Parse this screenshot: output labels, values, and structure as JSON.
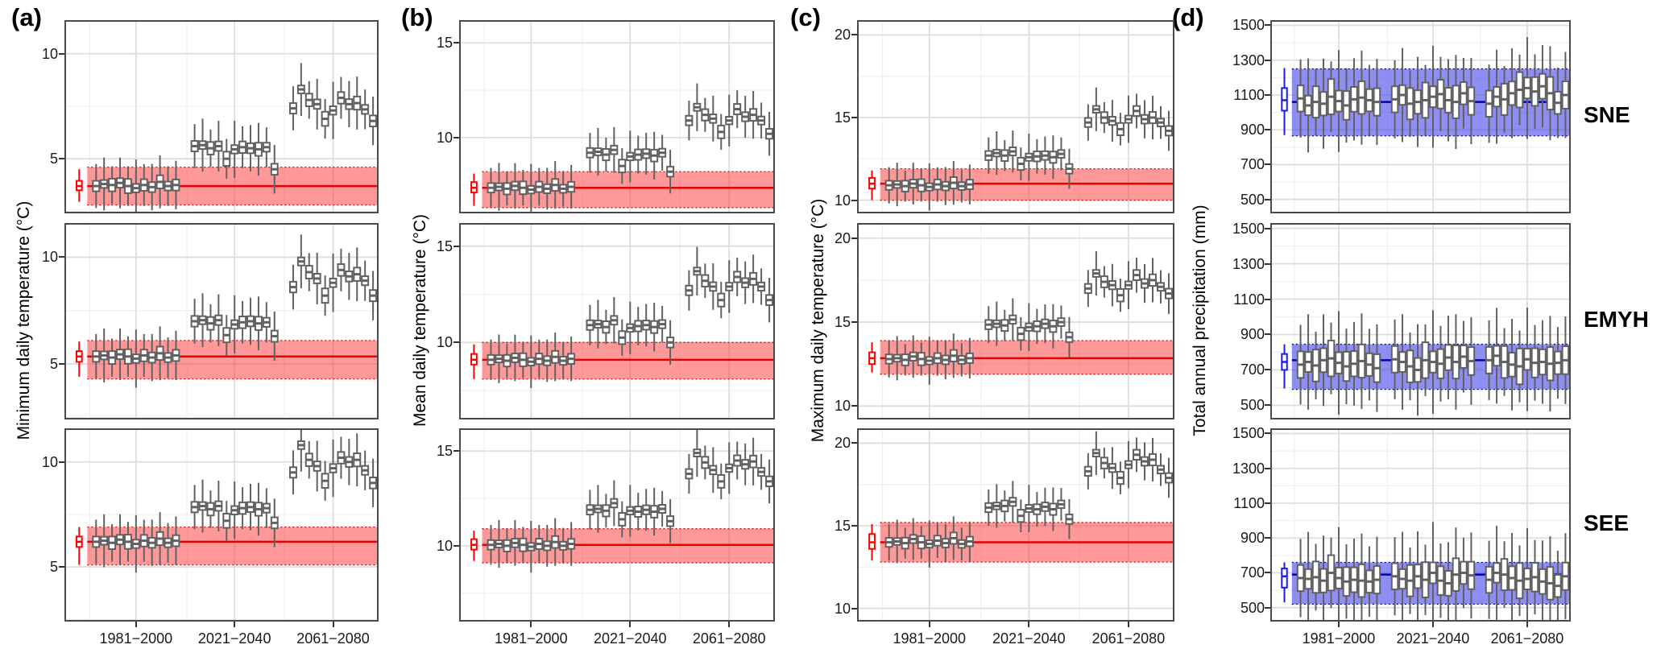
{
  "figure": {
    "regions": [
      "SNE",
      "EMYH",
      "SEE"
    ],
    "periods": [
      "1981−2000",
      "2021−2040",
      "2061−2080"
    ],
    "colors": {
      "box_stroke": "#616161",
      "box_fill": "#ffffff",
      "obs_red": "#ff0000",
      "band_red_fill": "rgba(255,60,60,0.52)",
      "band_red_line": "#e60000",
      "obs_blue": "#1c1cee",
      "band_blue_fill": "rgba(72,72,235,0.62)",
      "band_blue_line": "#0000b4",
      "grid_major": "#dedede",
      "grid_minor": "#efefef",
      "border": "#4a4a4a",
      "tick": "#333333"
    },
    "iqr_pattern": [
      1.0,
      0.75,
      1.2,
      0.9,
      1.35,
      0.8,
      1.1,
      0.95,
      1.25,
      0.85,
      1.05
    ],
    "whisker_pattern": [
      1.0,
      1.2,
      0.85,
      1.15,
      0.9,
      1.3,
      0.95,
      1.05,
      1.2,
      0.9,
      1.1
    ],
    "panels": [
      {
        "letter": "(a)",
        "ylabel": "Minimum daily temperature (°C)",
        "scheme": "red",
        "ylim": [
          2.4,
          11.6
        ],
        "yticks": [
          5,
          10
        ],
        "yticks_minor": [
          2.5,
          7.5
        ],
        "base_iqr": 0.5,
        "base_whisker": 1.05,
        "rows": [
          {
            "region": "SNE",
            "obs": {
              "med": 3.7,
              "q1": 3.5,
              "q3": 3.95,
              "lo": 2.95,
              "hi": 4.5
            },
            "band": {
              "lo": 2.8,
              "hi": 4.6,
              "center": 3.7
            },
            "groups": [
              [
                3.7,
                3.8,
                3.75,
                3.85,
                3.7,
                3.6,
                3.75,
                3.65,
                3.9,
                3.7,
                3.75
              ],
              [
                5.6,
                5.65,
                5.5,
                5.6,
                5.0,
                5.45,
                5.55,
                5.5,
                5.45,
                5.55,
                4.5
              ],
              [
                7.4,
                8.3,
                7.8,
                7.6,
                6.9,
                7.3,
                7.9,
                7.6,
                7.65,
                7.35,
                6.8
              ]
            ]
          },
          {
            "region": "EMYH",
            "obs": {
              "med": 5.35,
              "q1": 5.1,
              "q3": 5.6,
              "lo": 4.4,
              "hi": 6.05
            },
            "band": {
              "lo": 4.3,
              "hi": 6.1,
              "center": 5.35
            },
            "groups": [
              [
                5.35,
                5.4,
                5.3,
                5.45,
                5.35,
                5.25,
                5.4,
                5.3,
                5.5,
                5.3,
                5.4
              ],
              [
                7.0,
                7.05,
                6.9,
                7.05,
                6.35,
                6.85,
                6.95,
                7.0,
                6.9,
                6.95,
                6.3
              ],
              [
                8.6,
                9.8,
                9.3,
                9.0,
                8.2,
                8.8,
                9.4,
                9.1,
                9.2,
                8.9,
                8.2
              ]
            ]
          },
          {
            "region": "SEE",
            "obs": {
              "med": 6.2,
              "q1": 5.95,
              "q3": 6.45,
              "lo": 5.1,
              "hi": 6.9
            },
            "band": {
              "lo": 5.1,
              "hi": 6.9,
              "center": 6.2
            },
            "groups": [
              [
                6.2,
                6.25,
                6.15,
                6.3,
                6.2,
                6.1,
                6.25,
                6.15,
                6.35,
                6.15,
                6.25
              ],
              [
                7.85,
                7.9,
                7.75,
                7.9,
                7.2,
                7.7,
                7.8,
                7.85,
                7.75,
                7.8,
                7.1
              ],
              [
                9.5,
                10.8,
                10.1,
                9.8,
                9.1,
                9.7,
                10.2,
                10.0,
                10.1,
                9.6,
                9.0
              ]
            ]
          }
        ]
      },
      {
        "letter": "(b)",
        "ylabel": "Mean daily temperature (°C)",
        "scheme": "red",
        "ylim": [
          6.0,
          16.2
        ],
        "yticks": [
          10,
          15
        ],
        "yticks_minor": [
          7.5,
          12.5
        ],
        "base_iqr": 0.5,
        "base_whisker": 1.05,
        "rows": [
          {
            "region": "SNE",
            "obs": {
              "med": 7.35,
              "q1": 7.1,
              "q3": 7.65,
              "lo": 6.4,
              "hi": 8.1
            },
            "band": {
              "lo": 6.3,
              "hi": 8.2,
              "center": 7.35
            },
            "groups": [
              [
                7.35,
                7.4,
                7.3,
                7.45,
                7.35,
                7.25,
                7.4,
                7.3,
                7.5,
                7.3,
                7.4
              ],
              [
                9.2,
                9.25,
                9.1,
                9.35,
                8.5,
                9.0,
                9.1,
                9.15,
                9.05,
                9.2,
                8.2
              ],
              [
                10.9,
                11.6,
                11.2,
                11.0,
                10.3,
                10.9,
                11.5,
                11.1,
                11.2,
                10.9,
                10.2
              ]
            ]
          },
          {
            "region": "EMYH",
            "obs": {
              "med": 9.1,
              "q1": 8.85,
              "q3": 9.4,
              "lo": 8.1,
              "hi": 9.9
            },
            "band": {
              "lo": 8.1,
              "hi": 10.0,
              "center": 9.1
            },
            "groups": [
              [
                9.1,
                9.15,
                9.05,
                9.2,
                9.1,
                9.0,
                9.15,
                9.05,
                9.25,
                9.05,
                9.15
              ],
              [
                10.9,
                10.95,
                10.8,
                11.15,
                10.25,
                10.75,
                10.85,
                10.9,
                10.8,
                10.95,
                10.0
              ],
              [
                12.7,
                13.7,
                13.2,
                12.9,
                12.2,
                12.9,
                13.4,
                13.1,
                13.3,
                12.9,
                12.2
              ]
            ]
          },
          {
            "region": "SEE",
            "obs": {
              "med": 10.05,
              "q1": 9.8,
              "q3": 10.35,
              "lo": 9.2,
              "hi": 10.8
            },
            "band": {
              "lo": 9.1,
              "hi": 10.9,
              "center": 10.05
            },
            "groups": [
              [
                10.05,
                10.1,
                10.0,
                10.15,
                10.05,
                9.95,
                10.1,
                10.0,
                10.2,
                10.0,
                10.1
              ],
              [
                11.9,
                11.95,
                11.85,
                12.25,
                11.4,
                11.85,
                11.8,
                11.9,
                11.8,
                11.95,
                11.3
              ],
              [
                13.8,
                14.9,
                14.4,
                14.0,
                13.4,
                14.1,
                14.5,
                14.3,
                14.45,
                13.9,
                13.4
              ]
            ]
          }
        ]
      },
      {
        "letter": "(c)",
        "ylabel": "Maximum daily temperature (°C)",
        "scheme": "red",
        "ylim": [
          9.2,
          20.9
        ],
        "yticks": [
          10,
          15,
          20
        ],
        "yticks_minor": [
          12.5,
          17.5
        ],
        "base_iqr": 0.55,
        "base_whisker": 1.1,
        "rows": [
          {
            "region": "SNE",
            "obs": {
              "med": 11.0,
              "q1": 10.7,
              "q3": 11.35,
              "lo": 10.0,
              "hi": 11.8
            },
            "band": {
              "lo": 10.0,
              "hi": 11.9,
              "center": 11.0
            },
            "groups": [
              [
                10.9,
                10.95,
                10.85,
                11.0,
                10.9,
                10.8,
                10.95,
                10.85,
                11.05,
                10.85,
                10.95
              ],
              [
                12.7,
                12.85,
                12.7,
                12.95,
                12.2,
                12.6,
                12.65,
                12.7,
                12.6,
                12.8,
                11.9
              ],
              [
                14.7,
                15.5,
                15.0,
                14.8,
                14.3,
                14.9,
                15.4,
                14.9,
                15.0,
                14.7,
                14.2
              ]
            ]
          },
          {
            "region": "EMYH",
            "obs": {
              "med": 12.85,
              "q1": 12.5,
              "q3": 13.2,
              "lo": 12.0,
              "hi": 13.8
            },
            "band": {
              "lo": 11.9,
              "hi": 13.9,
              "center": 12.85
            },
            "groups": [
              [
                12.8,
                12.85,
                12.75,
                12.95,
                12.8,
                12.7,
                12.85,
                12.75,
                13.0,
                12.75,
                12.85
              ],
              [
                14.85,
                14.9,
                14.8,
                15.15,
                14.3,
                14.7,
                14.75,
                14.9,
                14.75,
                15.0,
                14.1
              ],
              [
                17.0,
                17.9,
                17.4,
                17.2,
                16.6,
                17.2,
                17.8,
                17.3,
                17.5,
                17.1,
                16.7
              ]
            ]
          },
          {
            "region": "SEE",
            "obs": {
              "med": 14.0,
              "q1": 13.6,
              "q3": 14.5,
              "lo": 12.9,
              "hi": 15.1
            },
            "band": {
              "lo": 12.8,
              "hi": 15.2,
              "center": 14.0
            },
            "groups": [
              [
                14.0,
                14.05,
                13.95,
                14.2,
                14.0,
                13.9,
                14.1,
                13.95,
                14.25,
                13.9,
                14.05
              ],
              [
                16.1,
                16.2,
                16.2,
                16.45,
                15.6,
                16.05,
                16.0,
                16.15,
                16.0,
                16.3,
                15.4
              ],
              [
                18.3,
                19.4,
                18.8,
                18.5,
                17.9,
                18.7,
                19.3,
                18.9,
                19.0,
                18.4,
                17.9
              ]
            ]
          }
        ]
      },
      {
        "letter": "(d)",
        "ylabel": "Total annual precipitation (mm)",
        "scheme": "blue",
        "ylim": [
          420,
          1530
        ],
        "yticks": [
          500,
          700,
          900,
          1100,
          1300,
          1500
        ],
        "yticks_minor": [
          600,
          800,
          1000,
          1200,
          1400
        ],
        "base_iqr": 150,
        "base_whisker": 225,
        "rows": [
          {
            "region": "SNE",
            "obs": {
              "med": 1070,
              "q1": 1010,
              "q3": 1140,
              "lo": 870,
              "hi": 1255
            },
            "band": {
              "lo": 865,
              "hi": 1250,
              "center": 1060
            },
            "groups": [
              [
                1080,
                1040,
                1060,
                1050,
                1090,
                1065,
                1040,
                1075,
                1085,
                1070,
                1060
              ],
              [
                1075,
                1100,
                1050,
                1060,
                1070,
                1090,
                1105,
                1070,
                1060,
                1110,
                1065
              ],
              [
                1050,
                1090,
                1075,
                1110,
                1130,
                1140,
                1120,
                1150,
                1110,
                1055,
                1100
              ]
            ]
          },
          {
            "region": "EMYH",
            "obs": {
              "med": 745,
              "q1": 700,
              "q3": 790,
              "lo": 595,
              "hi": 845
            },
            "band": {
              "lo": 590,
              "hi": 845,
              "center": 755
            },
            "groups": [
              [
                730,
                745,
                725,
                755,
                765,
                740,
                720,
                735,
                750,
                730,
                710
              ],
              [
                760,
                745,
                720,
                700,
                755,
                745,
                735,
                770,
                745,
                775,
                750
              ],
              [
                755,
                780,
                745,
                730,
                720,
                760,
                740,
                745,
                735,
                740,
                755
              ]
            ]
          },
          {
            "region": "SEE",
            "obs": {
              "med": 680,
              "q1": 615,
              "q3": 725,
              "lo": 530,
              "hi": 760
            },
            "band": {
              "lo": 520,
              "hi": 760,
              "center": 690
            },
            "groups": [
              [
                670,
                665,
                675,
                655,
                700,
                670,
                650,
                660,
                655,
                650,
                660
              ],
              [
                680,
                665,
                655,
                680,
                660,
                700,
                655,
                640,
                690,
                700,
                685
              ],
              [
                660,
                700,
                690,
                670,
                655,
                665,
                675,
                650,
                640,
                625,
                680
              ]
            ]
          }
        ]
      }
    ]
  },
  "chart_data": {
    "type": "table",
    "note": "Faceted boxplot figure: columns (a) minimum daily temperature, (b) mean daily temperature, (c) maximum daily temperature (deg C), (d) total annual precipitation (mm); rows are regions SNE, EMYH, SEE. Each facet shows one observed boxplot (red for temperature, blue for precipitation) with a shaded observed-range band, and 11 gray ensemble-member boxplots per period.",
    "periods": [
      "1981-2000",
      "2021-2040",
      "2061-2080"
    ],
    "regions": [
      "SNE",
      "EMYH",
      "SEE"
    ],
    "group_medians_by_panel": "see figure.panels[].rows[].groups",
    "legend_position": "none",
    "grid": true
  }
}
